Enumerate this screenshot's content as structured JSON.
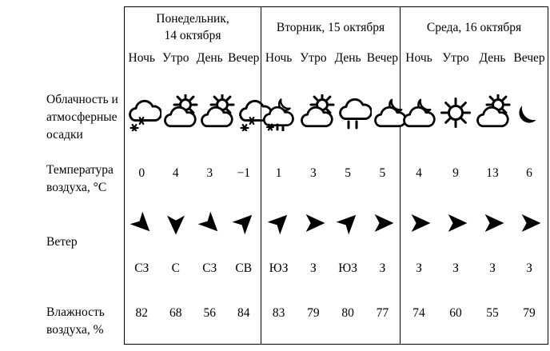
{
  "colors": {
    "background": "#ffffff",
    "border": "#000000",
    "text": "#000000",
    "icon": "#000000"
  },
  "row_labels": {
    "clouds": [
      "Облачность и",
      "атмосферные",
      "осадки"
    ],
    "temperature": [
      "Температура",
      "воздуха, °C"
    ],
    "wind": [
      "Ветер"
    ],
    "humidity": [
      "Влажность",
      "воздуха, %"
    ]
  },
  "time_labels": [
    "Ночь",
    "Утро",
    "День",
    "Вечер"
  ],
  "days": [
    {
      "title_lines": [
        "Понедельник,",
        "14 октября"
      ],
      "icons": [
        "snow-cloud",
        "sun-cloud",
        "sun-cloud",
        "snow-cloud"
      ],
      "temperature": [
        "0",
        "4",
        "3",
        "−1"
      ],
      "wind_dirs": [
        "СЗ",
        "С",
        "СЗ",
        "СВ"
      ],
      "wind_rotations": [
        45,
        90,
        45,
        -45
      ],
      "humidity": [
        "82",
        "68",
        "56",
        "84"
      ]
    },
    {
      "title_lines": [
        "Вторник, 15 октября"
      ],
      "icons": [
        "moon-cloud-snow",
        "sun-cloud",
        "rain-cloud",
        "moon-cloud"
      ],
      "temperature": [
        "1",
        "3",
        "5",
        "5"
      ],
      "wind_dirs": [
        "ЮЗ",
        "З",
        "ЮЗ",
        "З"
      ],
      "wind_rotations": [
        -45,
        0,
        -45,
        0
      ],
      "humidity": [
        "83",
        "79",
        "80",
        "77"
      ]
    },
    {
      "title_lines": [
        "Среда, 16 октября"
      ],
      "icons": [
        "moon-cloud",
        "sun",
        "sun-cloud",
        "moon"
      ],
      "temperature": [
        "4",
        "9",
        "13",
        "6"
      ],
      "wind_dirs": [
        "З",
        "З",
        "З",
        "З"
      ],
      "wind_rotations": [
        0,
        0,
        0,
        0
      ],
      "humidity": [
        "74",
        "60",
        "55",
        "79"
      ]
    }
  ]
}
